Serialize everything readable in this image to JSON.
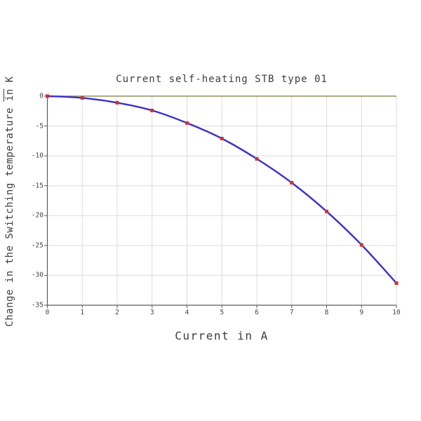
{
  "chart_data": {
    "type": "line",
    "title": "Current self-heating STB type 01",
    "xlabel": "Current in A",
    "ylabel_prefix": "Change in the Switching temperature ",
    "ylabel_in_word": "in",
    "ylabel_unit": " K",
    "x": [
      0,
      1,
      2,
      3,
      4,
      5,
      6,
      7,
      8,
      9,
      10
    ],
    "values": [
      0,
      -0.3,
      -1.1,
      -2.4,
      -4.5,
      -7.1,
      -10.5,
      -14.5,
      -19.3,
      -24.9,
      -31.3
    ],
    "xlim": [
      0,
      10
    ],
    "ylim": [
      -35,
      0
    ],
    "x_ticks": [
      "0",
      "1",
      "2",
      "3",
      "4",
      "5",
      "6",
      "7",
      "8",
      "9",
      "10"
    ],
    "y_ticks": [
      "0",
      "-5",
      "-10",
      "-15",
      "-20",
      "-25",
      "-30",
      "-35"
    ],
    "grid": "on",
    "legend": "none",
    "marker_shape": "square",
    "colors": {
      "line": "#3a31cb",
      "marker": "#cc3332",
      "zero_line": "#90905c",
      "grid": "#dcdcdc",
      "axis": "#5a5a5a",
      "text": "#3d3d3d"
    }
  }
}
